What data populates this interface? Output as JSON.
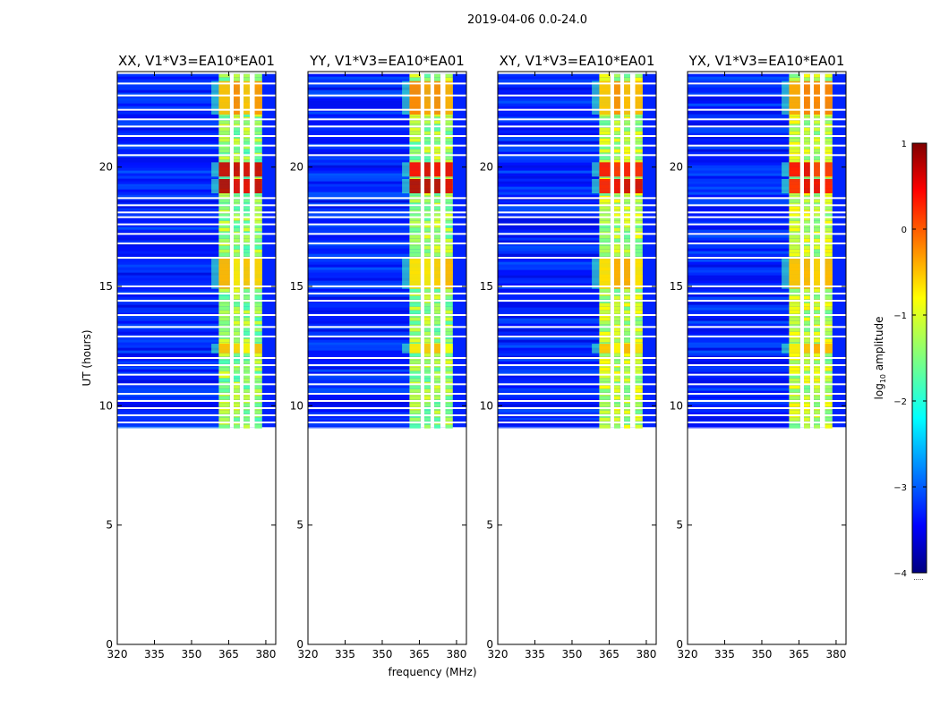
{
  "figure_title": "2019-04-06 0.0-24.0",
  "xlabel": "frequency (MHz)",
  "ylabel": "UT (hours)",
  "colorbar": {
    "label_prefix": "log",
    "label_sub": "10",
    "label_suffix": " amplitude",
    "ticks": [
      1,
      0,
      -1,
      -2,
      -3,
      -4
    ],
    "tick_labels": [
      "1",
      "0",
      "−1",
      "−2",
      "−3",
      "−4"
    ],
    "range": [
      -4,
      1
    ],
    "colormap": "jet",
    "bottom_note": "....."
  },
  "chart_data": {
    "type": "heatmap",
    "x_range": [
      320,
      384
    ],
    "y_range": [
      0,
      24
    ],
    "x_ticks": [
      320,
      335,
      350,
      365,
      380
    ],
    "x_tick_labels": [
      "320",
      "335",
      "350",
      "365",
      "380"
    ],
    "y_ticks": [
      0,
      5,
      10,
      15,
      20
    ],
    "y_tick_labels": [
      "0",
      "5",
      "10",
      "15",
      "20"
    ],
    "data_start_hour": 9.1,
    "data_end_hour": 23.9,
    "background_level": -3.2,
    "band_freq_range": [
      361,
      380
    ],
    "band_columns": [
      [
        361,
        365.5
      ],
      [
        367,
        369.5
      ],
      [
        371,
        373.5
      ],
      [
        375.5,
        378.5
      ]
    ],
    "band_level": -1.4,
    "strong_rows_hours": [
      [
        18.9,
        19.5
      ],
      [
        19.6,
        20.2
      ],
      [
        22.2,
        23.6
      ],
      [
        14.9,
        16.2
      ],
      [
        12.2,
        12.6
      ]
    ],
    "strong_row_levels": [
      0.6,
      0.5,
      -0.4,
      -0.6,
      -0.7
    ],
    "gap_rows_hours": [
      9.3,
      9.6,
      9.9,
      10.2,
      10.5,
      10.9,
      11.3,
      11.7,
      12.0,
      12.9,
      13.3,
      13.8,
      14.4,
      14.7,
      15.0,
      16.2,
      16.8,
      17.2,
      17.6,
      17.9,
      18.1,
      18.4,
      18.7,
      20.5,
      20.9,
      21.3,
      21.7,
      22.0,
      22.4,
      23.0,
      23.5
    ],
    "panels": [
      {
        "name": "XX",
        "title": "XX, V1*V3=EA10*EA01",
        "band_strength": 1.0
      },
      {
        "name": "YY",
        "title": "YY, V1*V3=EA10*EA01",
        "band_strength": 0.95
      },
      {
        "name": "XY",
        "title": "XY, V1*V3=EA10*EA01",
        "band_strength": 0.8
      },
      {
        "name": "YX",
        "title": "YX, V1*V3=EA10*EA01",
        "band_strength": 0.75
      }
    ]
  }
}
